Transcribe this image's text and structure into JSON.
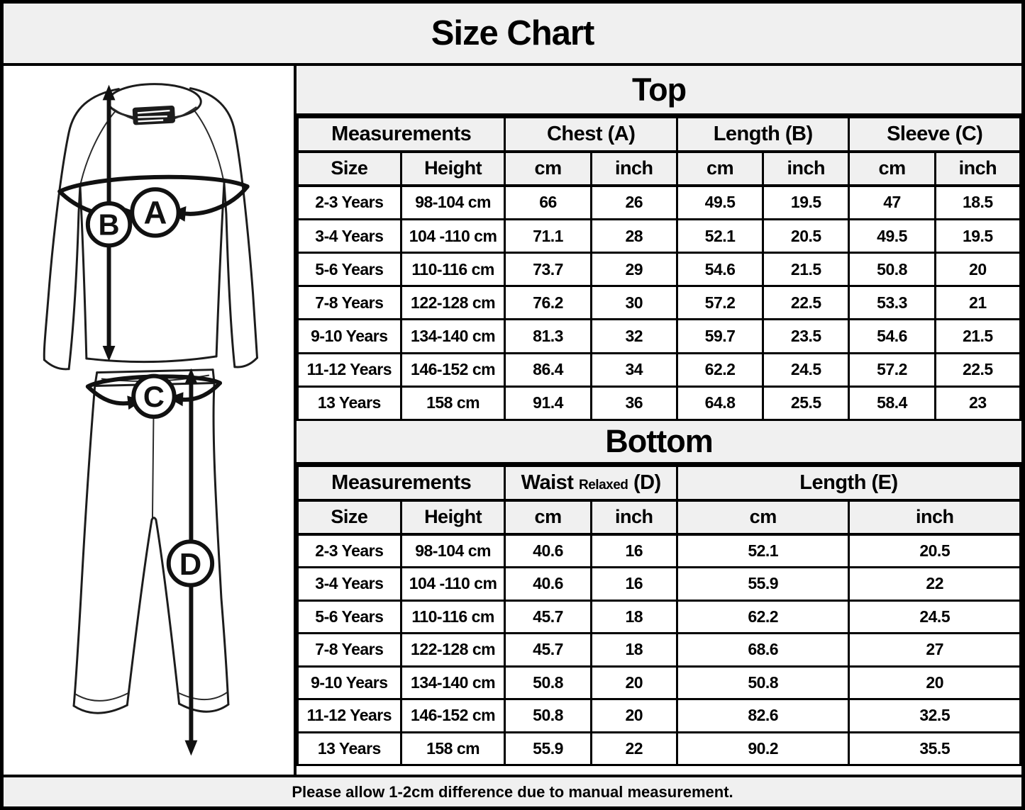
{
  "title": "Size Chart",
  "footer_note": "Please allow 1-2cm difference due to manual measurement.",
  "diagram": {
    "labels": [
      "A",
      "B",
      "C",
      "D"
    ]
  },
  "top_table": {
    "title": "Top",
    "group_headers": {
      "measurements": "Measurements",
      "chest": "Chest (A)",
      "length": "Length (B)",
      "sleeve": "Sleeve (C)"
    },
    "sub_headers": [
      "Size",
      "Height",
      "cm",
      "inch",
      "cm",
      "inch",
      "cm",
      "inch"
    ],
    "rows": [
      [
        "2-3 Years",
        "98-104 cm",
        "66",
        "26",
        "49.5",
        "19.5",
        "47",
        "18.5"
      ],
      [
        "3-4 Years",
        "104 -110 cm",
        "71.1",
        "28",
        "52.1",
        "20.5",
        "49.5",
        "19.5"
      ],
      [
        "5-6 Years",
        "110-116 cm",
        "73.7",
        "29",
        "54.6",
        "21.5",
        "50.8",
        "20"
      ],
      [
        "7-8 Years",
        "122-128 cm",
        "76.2",
        "30",
        "57.2",
        "22.5",
        "53.3",
        "21"
      ],
      [
        "9-10 Years",
        "134-140 cm",
        "81.3",
        "32",
        "59.7",
        "23.5",
        "54.6",
        "21.5"
      ],
      [
        "11-12 Years",
        "146-152 cm",
        "86.4",
        "34",
        "62.2",
        "24.5",
        "57.2",
        "22.5"
      ],
      [
        "13 Years",
        "158 cm",
        "91.4",
        "36",
        "64.8",
        "25.5",
        "58.4",
        "23"
      ]
    ]
  },
  "bottom_table": {
    "title": "Bottom",
    "group_headers": {
      "measurements": "Measurements",
      "waist_main": "Waist",
      "waist_small": "Relaxed",
      "waist_suffix": "(D)",
      "length": "Length (E)"
    },
    "sub_headers": [
      "Size",
      "Height",
      "cm",
      "inch",
      "cm",
      "inch"
    ],
    "rows": [
      [
        "2-3 Years",
        "98-104 cm",
        "40.6",
        "16",
        "52.1",
        "20.5"
      ],
      [
        "3-4 Years",
        "104 -110 cm",
        "40.6",
        "16",
        "55.9",
        "22"
      ],
      [
        "5-6 Years",
        "110-116 cm",
        "45.7",
        "18",
        "62.2",
        "24.5"
      ],
      [
        "7-8 Years",
        "122-128 cm",
        "45.7",
        "18",
        "68.6",
        "27"
      ],
      [
        "9-10 Years",
        "134-140 cm",
        "50.8",
        "20",
        "50.8",
        "20"
      ],
      [
        "11-12 Years",
        "146-152 cm",
        "50.8",
        "20",
        "82.6",
        "32.5"
      ],
      [
        "13 Years",
        "158 cm",
        "55.9",
        "22",
        "90.2",
        "35.5"
      ]
    ]
  }
}
